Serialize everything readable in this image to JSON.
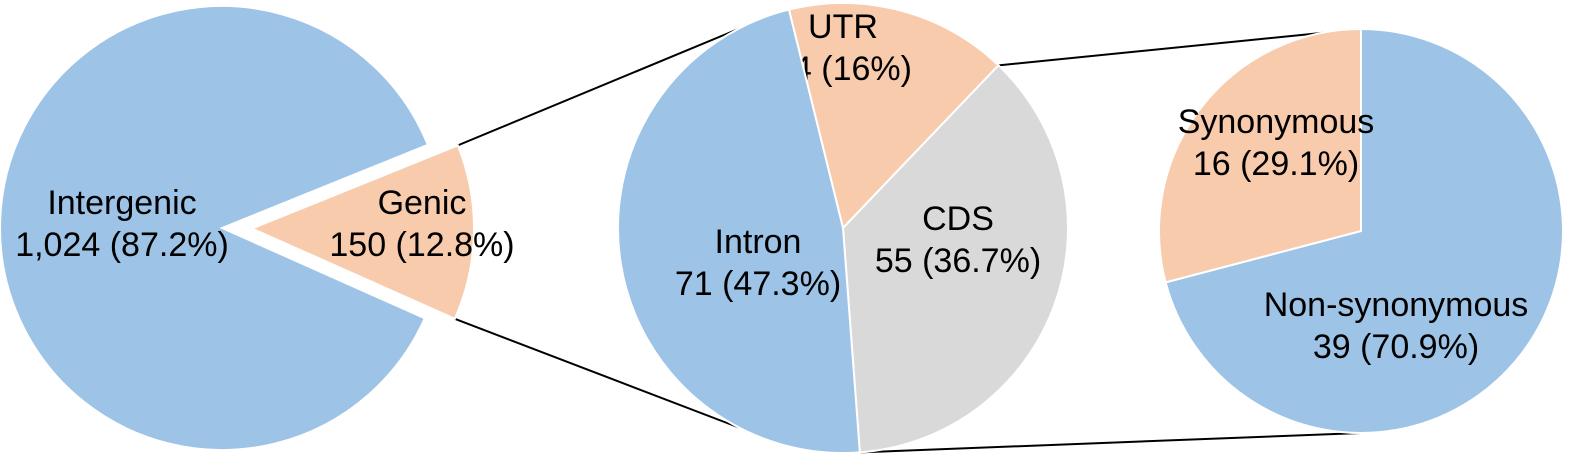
{
  "chart_data": [
    {
      "type": "pie",
      "slices": [
        {
          "name": "Intergenic",
          "value": 1024,
          "display": "1,024",
          "pct": "87.2%",
          "color": "#9dc3e6"
        },
        {
          "name": "Genic",
          "value": 150,
          "display": "150",
          "pct": "12.8%",
          "color": "#f8cbad",
          "exploded": true
        }
      ]
    },
    {
      "type": "pie",
      "slices": [
        {
          "name": "UTR",
          "value": 24,
          "display": "24",
          "pct": "16%",
          "color": "#f8cbad"
        },
        {
          "name": "CDS",
          "value": 55,
          "display": "55",
          "pct": "36.7%",
          "color": "#d9d9d9"
        },
        {
          "name": "Intron",
          "value": 71,
          "display": "71",
          "pct": "47.3%",
          "color": "#9dc3e6"
        }
      ]
    },
    {
      "type": "pie",
      "slices": [
        {
          "name": "Non-synonymous",
          "value": 39,
          "display": "39",
          "pct": "70.9%",
          "color": "#9dc3e6"
        },
        {
          "name": "Synonymous",
          "value": 16,
          "display": "16",
          "pct": "29.1%",
          "color": "#f8cbad"
        }
      ]
    }
  ]
}
